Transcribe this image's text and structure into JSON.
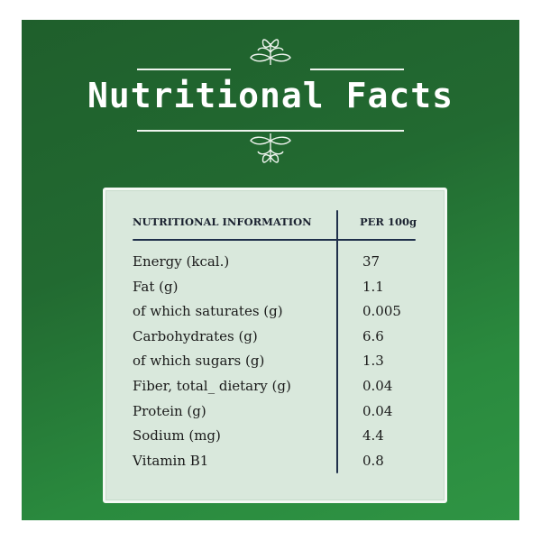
{
  "header": {
    "title": "Nutritional Facts",
    "decoration": "leaf-sprig-icon"
  },
  "table": {
    "col_name": "NUTRITIONAL INFORMATION",
    "col_value": "PER 100g",
    "rows": [
      {
        "name": "Energy (kcal.)",
        "value": "37"
      },
      {
        "name": "Fat (g)",
        "value": "1.1"
      },
      {
        "name": "of which saturates (g)",
        "value": "0.005"
      },
      {
        "name": "Carbohydrates (g)",
        "value": "6.6"
      },
      {
        "name": "of which sugars (g)",
        "value": "1.3"
      },
      {
        "name": "Fiber, total_ dietary (g)",
        "value": "0.04"
      },
      {
        "name": "Protein (g)",
        "value": "0.04"
      },
      {
        "name": "Sodium (mg)",
        "value": "4.4"
      },
      {
        "name": "Vitamin B1",
        "value": "0.8"
      }
    ]
  },
  "colors": {
    "background": "#226a31",
    "card": "#d9e8dc",
    "ink": "#1f2f4a"
  }
}
